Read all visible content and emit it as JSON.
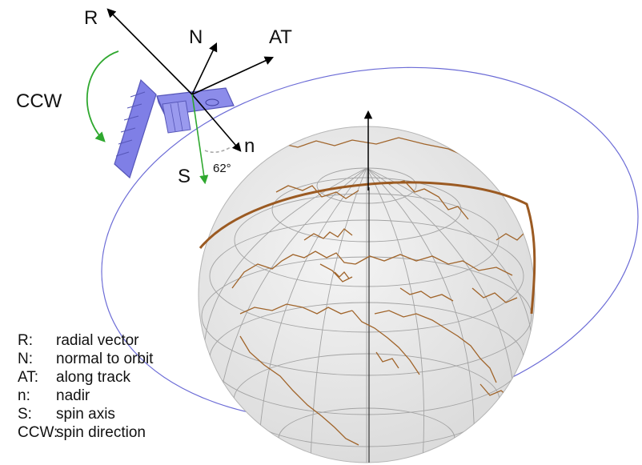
{
  "labels": {
    "R": "R",
    "N": "N",
    "AT": "AT",
    "n": "n",
    "S": "S",
    "CCW": "CCW",
    "angle": "62°"
  },
  "legend": [
    {
      "key": "R:",
      "desc": "radial vector"
    },
    {
      "key": "N:",
      "desc": "normal to orbit"
    },
    {
      "key": "AT:",
      "desc": "along track"
    },
    {
      "key": "n:",
      "desc": "nadir"
    },
    {
      "key": "S:",
      "desc": "spin axis"
    },
    {
      "key": "CCW:",
      "desc": "spin direction"
    }
  ],
  "colors": {
    "orbit": "#6b6bd6",
    "globe_fill": "#e9e9e9",
    "grid": "#9a9a9a",
    "coastline": "#a0642a",
    "equator": "#9b5a22",
    "satellite_body": "#7f7fe6",
    "spin_arrow": "#2fa82f",
    "vector": "#000000"
  }
}
